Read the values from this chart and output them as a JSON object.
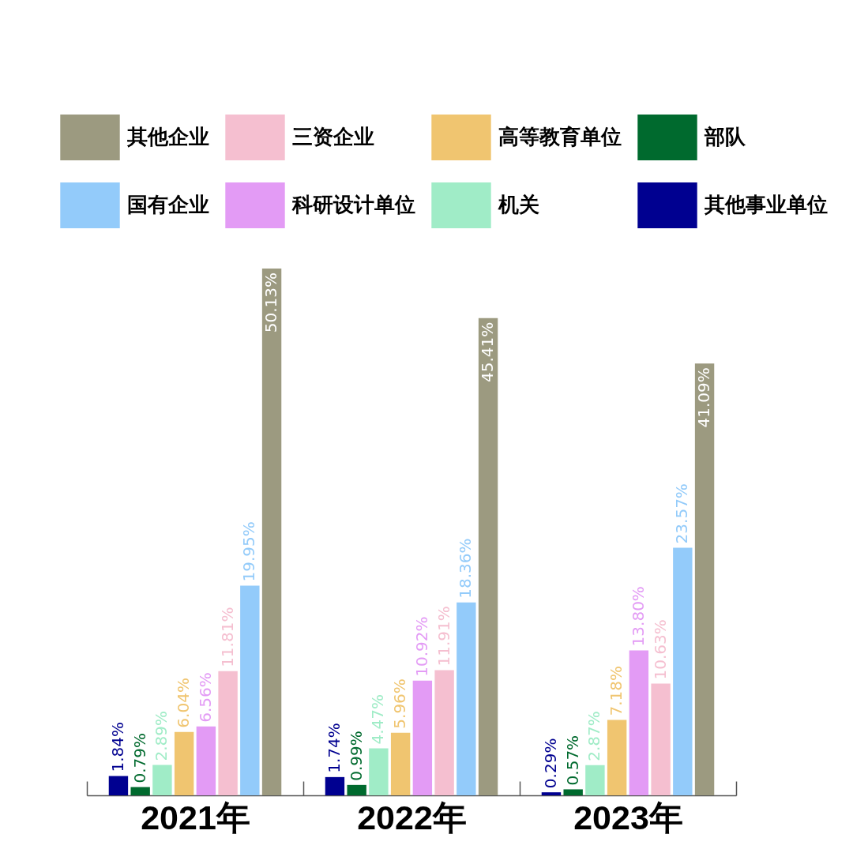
{
  "chart_data": {
    "type": "bar",
    "categories": [
      "2021年",
      "2022年",
      "2023年"
    ],
    "series": [
      {
        "name": "其他事业单位",
        "color": "#000090",
        "values": [
          1.84,
          1.74,
          0.29
        ],
        "value_labels": [
          "1.84%",
          "1.74%",
          "0.29%"
        ]
      },
      {
        "name": "部队",
        "color": "#006a2e",
        "values": [
          0.79,
          0.99,
          0.57
        ],
        "value_labels": [
          "0.79%",
          "0.99%",
          "0.57%"
        ]
      },
      {
        "name": "机关",
        "color": "#a0ecc7",
        "values": [
          2.89,
          4.47,
          2.87
        ],
        "value_labels": [
          "2.89%",
          "4.47%",
          "2.87%"
        ]
      },
      {
        "name": "高等教育单位",
        "color": "#f0c570",
        "values": [
          6.04,
          5.96,
          7.18
        ],
        "value_labels": [
          "6.04%",
          "5.96%",
          "7.18%"
        ]
      },
      {
        "name": "科研设计单位",
        "color": "#e39bf5",
        "values": [
          6.56,
          10.92,
          13.8
        ],
        "value_labels": [
          "6.56%",
          "10.92%",
          "13.80%"
        ]
      },
      {
        "name": "三资企业",
        "color": "#f5bfd0",
        "values": [
          11.81,
          11.91,
          10.63
        ],
        "value_labels": [
          "11.81%",
          "11.91%",
          "10.63%"
        ]
      },
      {
        "name": "国有企业",
        "color": "#93cbfa",
        "values": [
          19.95,
          18.36,
          23.57
        ],
        "value_labels": [
          "19.95%",
          "18.36%",
          "23.57%"
        ]
      },
      {
        "name": "其他企业",
        "color": "#9c9a80",
        "values": [
          50.13,
          45.41,
          41.09
        ],
        "value_labels": [
          "50.13%",
          "45.41%",
          "41.09%"
        ]
      }
    ],
    "legend": "top"
  }
}
